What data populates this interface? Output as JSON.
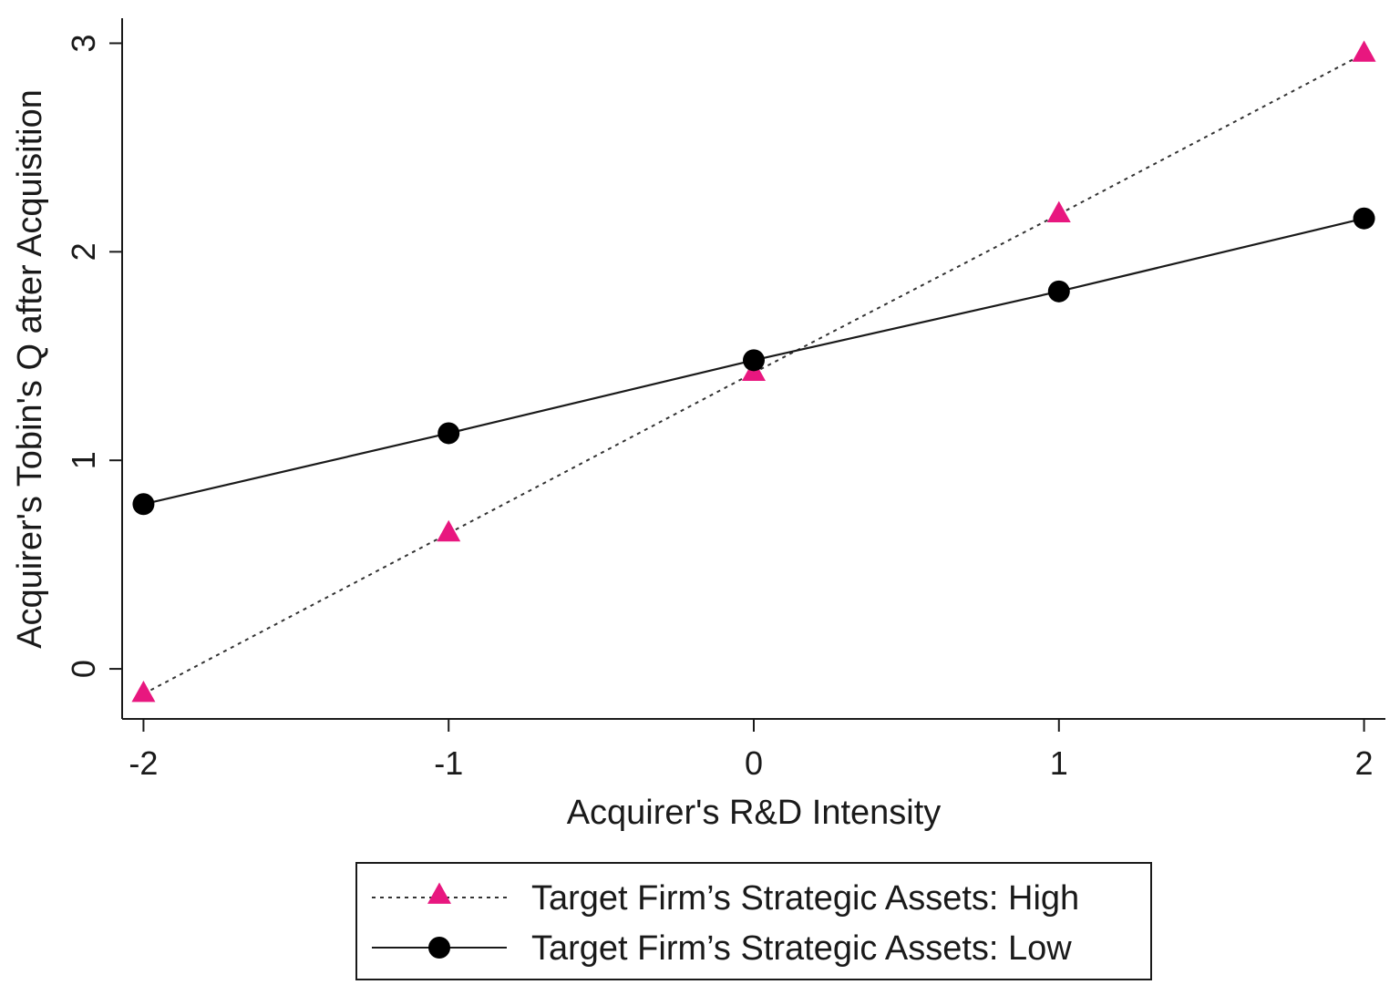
{
  "chart_data": {
    "type": "line",
    "title": "",
    "xlabel": "Acquirer's R&D Intensity",
    "ylabel": "Acquirer's Tobin's Q after Acquisition",
    "x": [
      -2,
      -1,
      0,
      1,
      2
    ],
    "xticks": [
      -2,
      -1,
      0,
      1,
      2
    ],
    "yticks": [
      0,
      1,
      2,
      3
    ],
    "xlim": [
      -2.07,
      2.07
    ],
    "ylim": [
      -0.24,
      3.12
    ],
    "grid": false,
    "legend_position": "bottom",
    "series": [
      {
        "name": "Target Firm’s Strategic Assets: High",
        "values": [
          -0.12,
          0.65,
          1.42,
          2.18,
          2.95
        ],
        "color": "#e8177f",
        "marker": "triangle-up",
        "line_style": "dotted",
        "line_color": "#333333"
      },
      {
        "name": "Target Firm’s Strategic Assets: Low",
        "values": [
          0.79,
          1.13,
          1.48,
          1.81,
          2.16
        ],
        "color": "#000000",
        "marker": "circle",
        "line_style": "solid",
        "line_color": "#1a1a1a"
      }
    ]
  }
}
